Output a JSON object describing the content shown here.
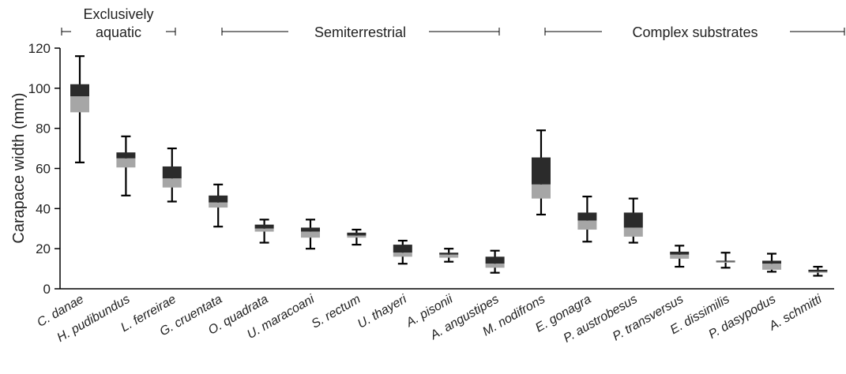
{
  "chart_data": {
    "type": "box",
    "ylabel": "Carapace width (mm)",
    "ylim": [
      0,
      120
    ],
    "yticks": [
      0,
      20,
      40,
      60,
      80,
      100,
      120
    ],
    "grid": false,
    "colors": {
      "upper_box": "#2b2b2b",
      "lower_box": "#a6a6a6",
      "whisker": "#000000"
    },
    "categories": [
      "C. danae",
      "H. pudibundus",
      "L. ferreirae",
      "G. cruentata",
      "O. quadrata",
      "U. maracoani",
      "S. rectum",
      "U. thayeri",
      "A. pisonii",
      "A. angustipes",
      "M. nodifrons",
      "E. gonagra",
      "P. austrobesus",
      "P. transversus",
      "E. dissimilis",
      "P. dasypodus",
      "A. schmitti"
    ],
    "boxes": [
      {
        "min": 63,
        "q1": 88,
        "median": 96,
        "q3": 102,
        "max": 116
      },
      {
        "min": 46.5,
        "q1": 60.5,
        "median": 65,
        "q3": 68,
        "max": 76
      },
      {
        "min": 43.5,
        "q1": 50.5,
        "median": 55,
        "q3": 61,
        "max": 70
      },
      {
        "min": 31,
        "q1": 40.5,
        "median": 43,
        "q3": 46.5,
        "max": 52
      },
      {
        "min": 23,
        "q1": 28.5,
        "median": 30,
        "q3": 32,
        "max": 34.5
      },
      {
        "min": 20,
        "q1": 25.5,
        "median": 28.5,
        "q3": 30.5,
        "max": 34.5
      },
      {
        "min": 22,
        "q1": 25.5,
        "median": 26.5,
        "q3": 28,
        "max": 29.5
      },
      {
        "min": 12.5,
        "q1": 16,
        "median": 18,
        "q3": 22,
        "max": 24
      },
      {
        "min": 13.5,
        "q1": 15.5,
        "median": 17,
        "q3": 18,
        "max": 20
      },
      {
        "min": 8,
        "q1": 10.5,
        "median": 12.5,
        "q3": 16,
        "max": 19
      },
      {
        "min": 37,
        "q1": 45,
        "median": 52,
        "q3": 65.5,
        "max": 79
      },
      {
        "min": 23.5,
        "q1": 29.5,
        "median": 34,
        "q3": 38,
        "max": 46
      },
      {
        "min": 23,
        "q1": 26,
        "median": 30.5,
        "q3": 38,
        "max": 45
      },
      {
        "min": 11,
        "q1": 15,
        "median": 17,
        "q3": 18.5,
        "max": 21.5
      },
      {
        "min": 10.5,
        "q1": 13,
        "median": 13.5,
        "q3": 14,
        "max": 18
      },
      {
        "min": 8.5,
        "q1": 9.5,
        "median": 12.5,
        "q3": 14,
        "max": 17.5
      },
      {
        "min": 6.5,
        "q1": 8,
        "median": 8.5,
        "q3": 9.5,
        "max": 11
      }
    ],
    "groups": [
      {
        "label_lines": [
          "Exclusively",
          "aquatic"
        ],
        "from_category": 0,
        "to_category": 1
      },
      {
        "label_lines": [
          "Semiterrestrial"
        ],
        "from_category": 3,
        "to_category": 9
      },
      {
        "label_lines": [
          "Complex substrates"
        ],
        "from_category": 10,
        "to_category": 16
      }
    ]
  }
}
